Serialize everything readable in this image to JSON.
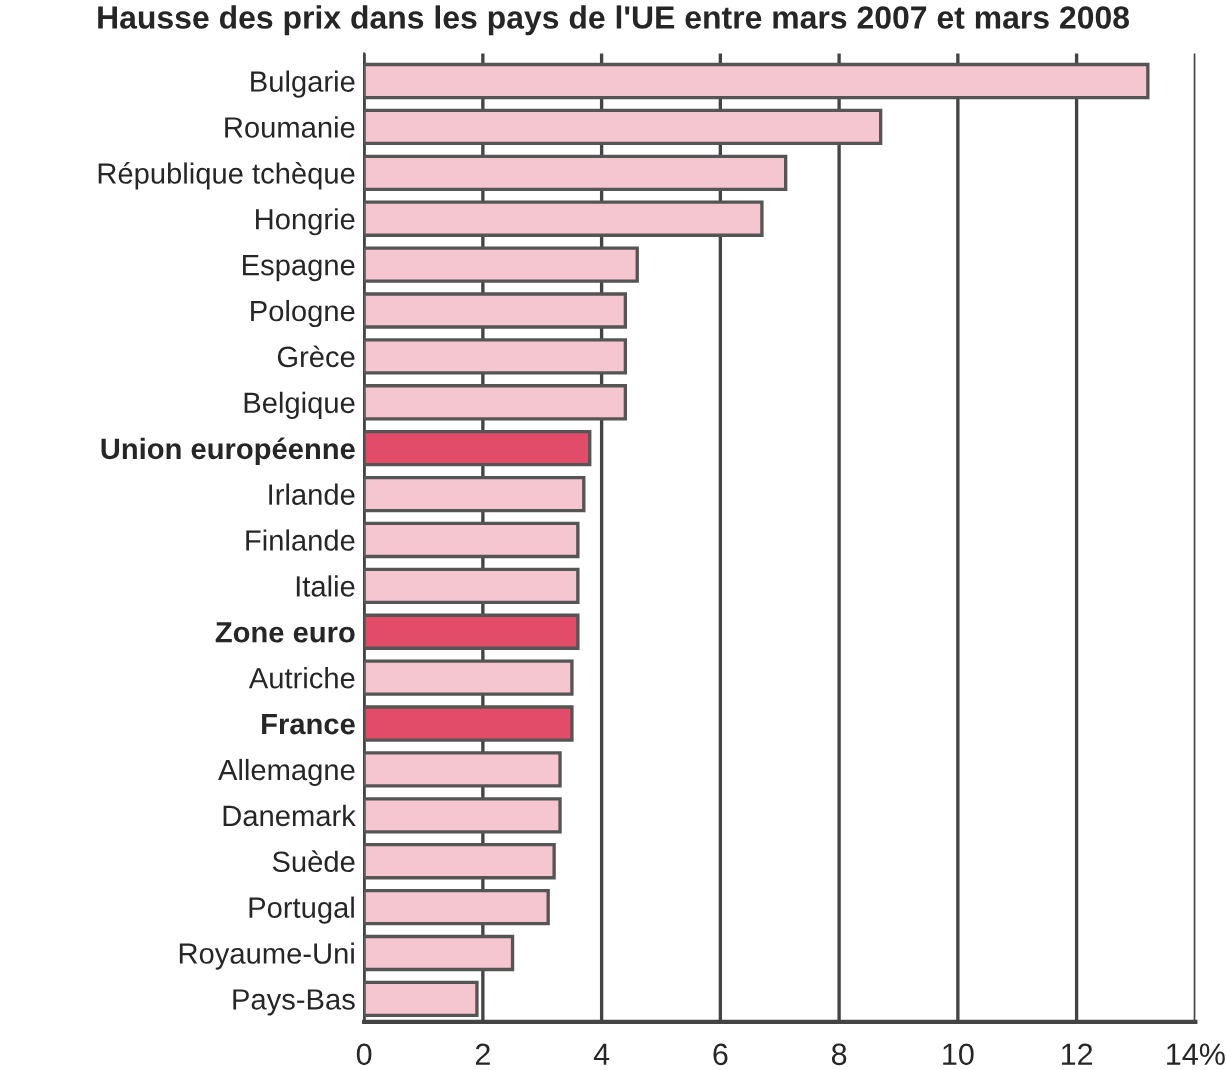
{
  "chart_data": {
    "type": "bar",
    "orientation": "horizontal",
    "title": "Hausse des prix dans les pays de l'UE entre mars 2007 et mars 2008",
    "categories": [
      "Bulgarie",
      "Roumanie",
      "République tchèque",
      "Hongrie",
      "Espagne",
      "Pologne",
      "Grèce",
      "Belgique",
      "Union européenne",
      "Irlande",
      "Finlande",
      "Italie",
      "Zone euro",
      "Autriche",
      "France",
      "Allemagne",
      "Danemark",
      "Suède",
      "Portugal",
      "Royaume-Uni",
      "Pays-Bas"
    ],
    "values": [
      13.2,
      8.7,
      7.1,
      6.7,
      4.6,
      4.4,
      4.4,
      4.4,
      3.8,
      3.7,
      3.6,
      3.6,
      3.6,
      3.5,
      3.5,
      3.3,
      3.3,
      3.2,
      3.1,
      2.5,
      1.9
    ],
    "colors": [
      "#f5c5d0",
      "#f5c5d0",
      "#f5c5d0",
      "#f5c5d0",
      "#f5c5d0",
      "#f5c5d0",
      "#f5c5d0",
      "#f5c5d0",
      "#e24c68",
      "#f5c5d0",
      "#f5c5d0",
      "#f5c5d0",
      "#e24c68",
      "#f5c5d0",
      "#e24c68",
      "#f5c5d0",
      "#f5c5d0",
      "#f5c5d0",
      "#f5c5d0",
      "#f5c5d0",
      "#f5c5d0"
    ],
    "xlim": [
      0,
      14
    ],
    "xticks": [
      0,
      2,
      4,
      6,
      8,
      10,
      12,
      {
        "value": 14,
        "label": "14%"
      }
    ],
    "grid": "x"
  }
}
